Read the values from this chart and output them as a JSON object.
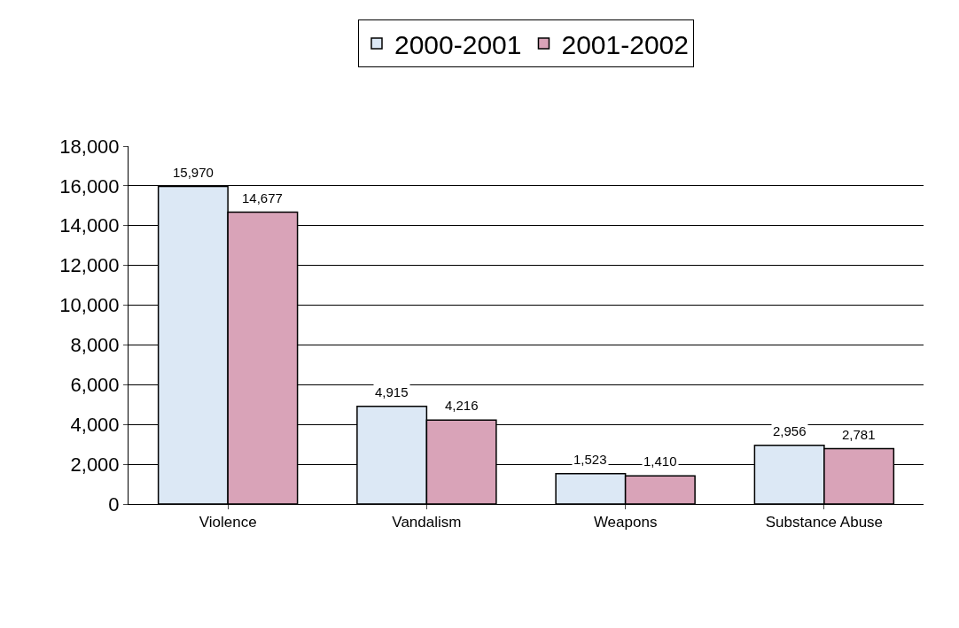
{
  "chart_data": {
    "type": "bar",
    "categories": [
      "Violence",
      "Vandalism",
      "Weapons",
      "Substance Abuse"
    ],
    "series": [
      {
        "name": "2000-2001",
        "color": "#dce8f5",
        "values": [
          15970,
          4915,
          1523,
          2956
        ],
        "value_labels": [
          "15,970",
          "4,915",
          "1,523",
          "2,956"
        ]
      },
      {
        "name": "2001-2002",
        "color": "#d9a3b8",
        "values": [
          14677,
          4216,
          1410,
          2781
        ],
        "value_labels": [
          "14,677",
          "4,216",
          "1,410",
          "2,781"
        ]
      }
    ],
    "ylim": [
      0,
      18000
    ],
    "yticks": [
      {
        "value": 0,
        "label": "0"
      },
      {
        "value": 2000,
        "label": "2,000"
      },
      {
        "value": 4000,
        "label": "4,000"
      },
      {
        "value": 6000,
        "label": "6,000"
      },
      {
        "value": 8000,
        "label": "8,000"
      },
      {
        "value": 10000,
        "label": "10,000"
      },
      {
        "value": 12000,
        "label": "12,000"
      },
      {
        "value": 14000,
        "label": "14,000"
      },
      {
        "value": 16000,
        "label": "16,000"
      },
      {
        "value": 18000,
        "label": "18,000"
      }
    ],
    "grid": "y",
    "legend": "top"
  }
}
